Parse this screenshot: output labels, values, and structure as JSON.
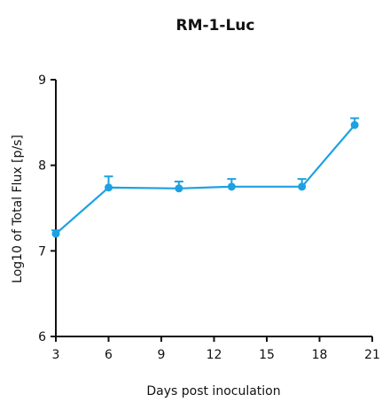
{
  "chart_data": {
    "type": "line",
    "title": "RM-1-Luc",
    "xlabel": "Days post inoculation",
    "ylabel": "Log10 of Total Flux [p/s]",
    "xlim": [
      3,
      21
    ],
    "ylim": [
      6,
      9
    ],
    "xticks": [
      3,
      6,
      9,
      12,
      15,
      18,
      21
    ],
    "yticks": [
      6,
      7,
      8,
      9
    ],
    "grid": false,
    "series": [
      {
        "color": "#1da1e2",
        "x": [
          3,
          6,
          10,
          13,
          17,
          20
        ],
        "y": [
          7.2,
          7.74,
          7.73,
          7.75,
          7.75,
          8.47
        ],
        "error": [
          0.04,
          0.13,
          0.08,
          0.09,
          0.09,
          0.08
        ]
      }
    ]
  }
}
